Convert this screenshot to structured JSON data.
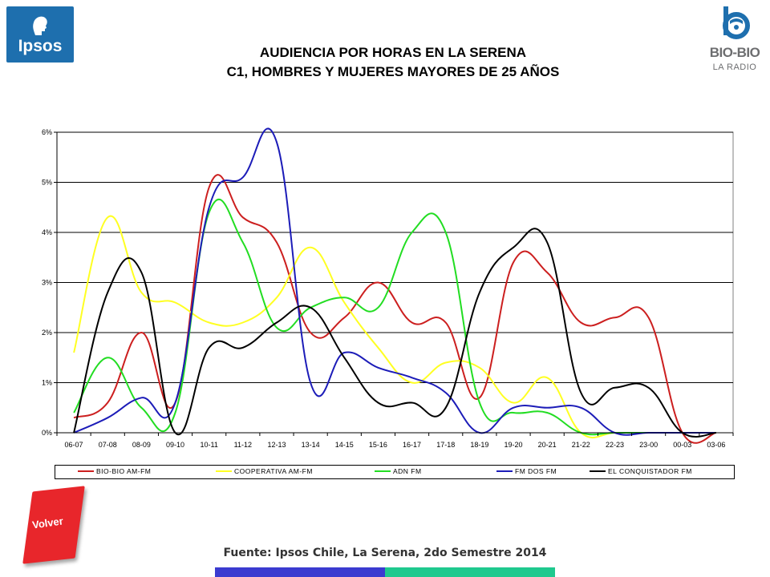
{
  "header": {
    "ipsos_logo": {
      "text": "Ipsos",
      "icon": "ipsos-head-icon",
      "color": "#1e6fae"
    },
    "title_line1": "AUDIENCIA POR HORAS EN LA SERENA",
    "title_line2": "C1, HOMBRES Y MUJERES MAYORES DE 25 AÑOS",
    "biobio_logo": {
      "name": "BIO-BIO",
      "sub": "LA RADIO",
      "icon": "biobio-b-icon",
      "color": "#1e6fae"
    }
  },
  "chart_data": {
    "type": "line",
    "title": "",
    "xlabel": "",
    "ylabel": "",
    "categories": [
      "06-07",
      "07-08",
      "08-09",
      "09-10",
      "10-11",
      "11-12",
      "12-13",
      "13-14",
      "14-15",
      "15-16",
      "16-17",
      "17-18",
      "18-19",
      "19-20",
      "20-21",
      "21-22",
      "22-23",
      "23-00",
      "00-03",
      "03-06"
    ],
    "ylim": [
      0,
      6
    ],
    "yticks": [
      0,
      1,
      2,
      3,
      4,
      5,
      6
    ],
    "ytick_labels": [
      "0%",
      "1%",
      "2%",
      "3%",
      "4%",
      "5%",
      "6%"
    ],
    "grid": true,
    "legend_position": "bottom",
    "smooth": true,
    "series": [
      {
        "name": "BIO-BIO AM-FM",
        "color": "#cc1f1f",
        "values": [
          0.3,
          0.6,
          2.0,
          0.6,
          4.9,
          4.3,
          3.8,
          2.0,
          2.3,
          3.0,
          2.2,
          2.2,
          0.7,
          3.4,
          3.2,
          2.2,
          2.3,
          2.3,
          0.0,
          0.0
        ]
      },
      {
        "name": "COOPERATIVA AM-FM",
        "color": "#ffff22",
        "values": [
          1.6,
          4.3,
          2.8,
          2.6,
          2.2,
          2.2,
          2.7,
          3.7,
          2.6,
          1.7,
          1.0,
          1.4,
          1.3,
          0.6,
          1.1,
          0.0,
          0.0,
          0.0,
          0.0,
          0.0
        ]
      },
      {
        "name": "ADN FM",
        "color": "#22dd22",
        "values": [
          0.4,
          1.5,
          0.5,
          0.4,
          4.4,
          3.8,
          2.1,
          2.5,
          2.7,
          2.5,
          4.0,
          4.0,
          0.6,
          0.4,
          0.4,
          0.0,
          0.0,
          0.0,
          0.0,
          0.0
        ]
      },
      {
        "name": "FM DOS FM",
        "color": "#1c1cb8",
        "values": [
          0.0,
          0.3,
          0.7,
          0.6,
          4.5,
          5.1,
          5.8,
          1.0,
          1.6,
          1.3,
          1.1,
          0.8,
          0.0,
          0.5,
          0.5,
          0.5,
          0.0,
          0.0,
          0.0,
          0.0
        ]
      },
      {
        "name": "EL CONQUISTADOR FM",
        "color": "#000000",
        "values": [
          0.0,
          2.8,
          3.2,
          0.0,
          1.7,
          1.7,
          2.2,
          2.5,
          1.5,
          0.6,
          0.6,
          0.5,
          2.8,
          3.7,
          3.8,
          0.8,
          0.9,
          0.9,
          0.0,
          0.0
        ]
      }
    ]
  },
  "nav": {
    "volver_label": "Volver",
    "volver_color": "#e8262b"
  },
  "footer": {
    "source": "Fuente: Ipsos Chile, La Serena, 2do Semestre 2014",
    "bar_colors": [
      "#3b3bd0",
      "#1fc98e"
    ]
  }
}
